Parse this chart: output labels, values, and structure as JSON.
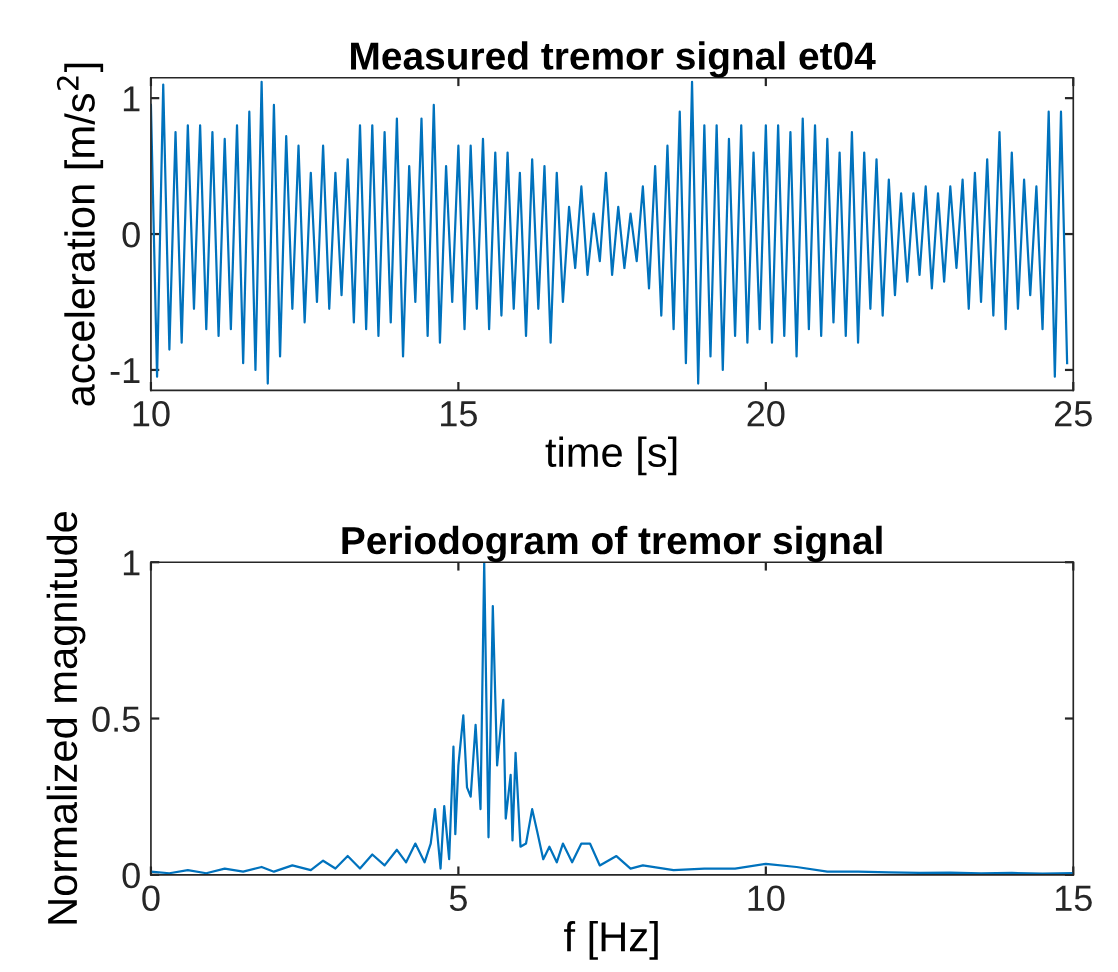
{
  "chart_data": [
    {
      "type": "line",
      "title": "Measured tremor signal et04",
      "xlabel": "time [s]",
      "ylabel": "acceleration [m/s$^{2}$]",
      "xlim": [
        10,
        25
      ],
      "ylim": [
        -1.15,
        1.15
      ],
      "xticks": [
        10,
        15,
        20,
        25
      ],
      "yticks": [
        -1,
        0,
        1
      ],
      "grid": false,
      "legend": false,
      "series": [
        {
          "color": "#0072bd",
          "x": [
            10.0,
            10.1,
            10.2,
            10.3,
            10.4,
            10.5,
            10.6,
            10.7,
            10.8,
            10.9,
            11.0,
            11.1,
            11.2,
            11.3,
            11.4,
            11.5,
            11.6,
            11.7,
            11.8,
            11.9,
            12.0,
            12.1,
            12.2,
            12.3,
            12.4,
            12.5,
            12.6,
            12.7,
            12.8,
            12.9,
            13.0,
            13.1,
            13.2,
            13.3,
            13.4,
            13.5,
            13.6,
            13.7,
            13.8,
            13.9,
            14.0,
            14.1,
            14.2,
            14.3,
            14.4,
            14.5,
            14.6,
            14.7,
            14.8,
            14.9,
            15.0,
            15.1,
            15.2,
            15.3,
            15.4,
            15.5,
            15.6,
            15.7,
            15.8,
            15.9,
            16.0,
            16.1,
            16.2,
            16.3,
            16.4,
            16.5,
            16.6,
            16.7,
            16.8,
            16.9,
            17.0,
            17.1,
            17.2,
            17.3,
            17.4,
            17.5,
            17.6,
            17.7,
            17.8,
            17.9,
            18.0,
            18.1,
            18.2,
            18.3,
            18.4,
            18.5,
            18.6,
            18.7,
            18.8,
            18.9,
            19.0,
            19.1,
            19.2,
            19.3,
            19.4,
            19.5,
            19.6,
            19.7,
            19.8,
            19.9,
            20.0,
            20.1,
            20.2,
            20.3,
            20.4,
            20.5,
            20.6,
            20.7,
            20.8,
            20.9,
            21.0,
            21.1,
            21.2,
            21.3,
            21.4,
            21.5,
            21.6,
            21.7,
            21.8,
            21.9,
            22.0,
            22.1,
            22.2,
            22.3,
            22.4,
            22.5,
            22.6,
            22.7,
            22.8,
            22.9,
            23.0,
            23.1,
            23.2,
            23.3,
            23.4,
            23.5,
            23.6,
            23.7,
            23.8,
            23.9,
            24.0,
            24.1,
            24.2,
            24.3,
            24.4,
            24.5,
            24.6,
            24.7,
            24.8,
            24.9
          ],
          "values": [
            0.95,
            -1.05,
            1.1,
            -0.85,
            0.75,
            -0.8,
            0.8,
            -0.55,
            0.8,
            -0.7,
            0.75,
            -0.75,
            0.7,
            -0.7,
            0.8,
            -0.95,
            0.9,
            -1.0,
            1.12,
            -1.1,
            0.95,
            -0.9,
            0.72,
            -0.55,
            0.65,
            -0.65,
            0.45,
            -0.5,
            0.65,
            -0.55,
            0.45,
            -0.45,
            0.55,
            -0.65,
            0.8,
            -0.7,
            0.8,
            -0.75,
            0.75,
            -0.65,
            0.85,
            -0.9,
            0.5,
            -0.5,
            0.85,
            -0.75,
            0.95,
            -0.8,
            0.5,
            -0.5,
            0.65,
            -0.7,
            0.65,
            -0.55,
            0.7,
            -0.7,
            0.6,
            -0.6,
            0.6,
            -0.55,
            0.45,
            -0.75,
            0.55,
            -0.55,
            0.5,
            -0.8,
            0.45,
            -0.5,
            0.2,
            -0.25,
            0.35,
            -0.3,
            0.15,
            -0.2,
            0.45,
            -0.3,
            0.2,
            -0.25,
            0.15,
            -0.2,
            0.35,
            -0.4,
            0.5,
            -0.6,
            0.65,
            -0.7,
            0.9,
            -0.95,
            1.12,
            -1.1,
            0.8,
            -0.9,
            0.8,
            -1.0,
            0.7,
            -0.75,
            0.8,
            -0.8,
            0.6,
            -0.7,
            0.8,
            -0.8,
            0.8,
            -0.75,
            0.75,
            -0.9,
            0.85,
            -0.7,
            0.8,
            -0.75,
            0.7,
            -0.65,
            0.6,
            -0.75,
            0.75,
            -0.8,
            0.6,
            -0.55,
            0.55,
            -0.6,
            0.4,
            -0.45,
            0.3,
            -0.35,
            0.3,
            -0.3,
            0.35,
            -0.4,
            0.3,
            -0.35,
            0.35,
            -0.25,
            0.4,
            -0.55,
            0.45,
            -0.5,
            0.55,
            -0.6,
            0.75,
            -0.7,
            0.6,
            -0.55,
            0.4,
            -0.45,
            0.35,
            -0.7,
            0.9,
            -1.05,
            0.9,
            -0.95
          ]
        }
      ]
    },
    {
      "type": "line",
      "title": "Periodogram of tremor signal",
      "xlabel": "f [Hz]",
      "ylabel": "Normalized magnitude",
      "xlim": [
        0,
        15
      ],
      "ylim": [
        0,
        1
      ],
      "xticks": [
        0,
        5,
        10,
        15
      ],
      "yticks": [
        0,
        0.5,
        1
      ],
      "grid": false,
      "legend": false,
      "series": [
        {
          "color": "#0072bd",
          "x": [
            0,
            0.3,
            0.6,
            0.9,
            1.2,
            1.5,
            1.8,
            2.0,
            2.3,
            2.6,
            2.8,
            3.0,
            3.2,
            3.4,
            3.6,
            3.8,
            4.0,
            4.15,
            4.3,
            4.45,
            4.55,
            4.62,
            4.71,
            4.77,
            4.85,
            4.92,
            4.95,
            5.0,
            5.08,
            5.14,
            5.2,
            5.28,
            5.36,
            5.42,
            5.49,
            5.56,
            5.63,
            5.73,
            5.77,
            5.85,
            5.88,
            5.93,
            6.01,
            6.1,
            6.2,
            6.28,
            6.38,
            6.48,
            6.6,
            6.7,
            6.85,
            7.0,
            7.14,
            7.3,
            7.57,
            7.8,
            8.0,
            8.5,
            9.0,
            9.5,
            10.0,
            10.5,
            11.0,
            11.5,
            12.0,
            12.5,
            13.0,
            13.5,
            14.0,
            14.5,
            15.0
          ],
          "values": [
            0.01,
            0.005,
            0.015,
            0.005,
            0.02,
            0.01,
            0.025,
            0.01,
            0.03,
            0.015,
            0.045,
            0.02,
            0.06,
            0.02,
            0.065,
            0.03,
            0.08,
            0.04,
            0.1,
            0.04,
            0.1,
            0.21,
            0.02,
            0.22,
            0.05,
            0.41,
            0.13,
            0.35,
            0.51,
            0.28,
            0.25,
            0.48,
            0.21,
            1.0,
            0.12,
            0.86,
            0.35,
            0.56,
            0.18,
            0.32,
            0.11,
            0.39,
            0.09,
            0.1,
            0.21,
            0.14,
            0.05,
            0.09,
            0.04,
            0.1,
            0.04,
            0.1,
            0.1,
            0.03,
            0.06,
            0.02,
            0.03,
            0.015,
            0.02,
            0.02,
            0.035,
            0.025,
            0.01,
            0.01,
            0.008,
            0.006,
            0.007,
            0.005,
            0.006,
            0.004,
            0.005
          ]
        }
      ]
    }
  ]
}
